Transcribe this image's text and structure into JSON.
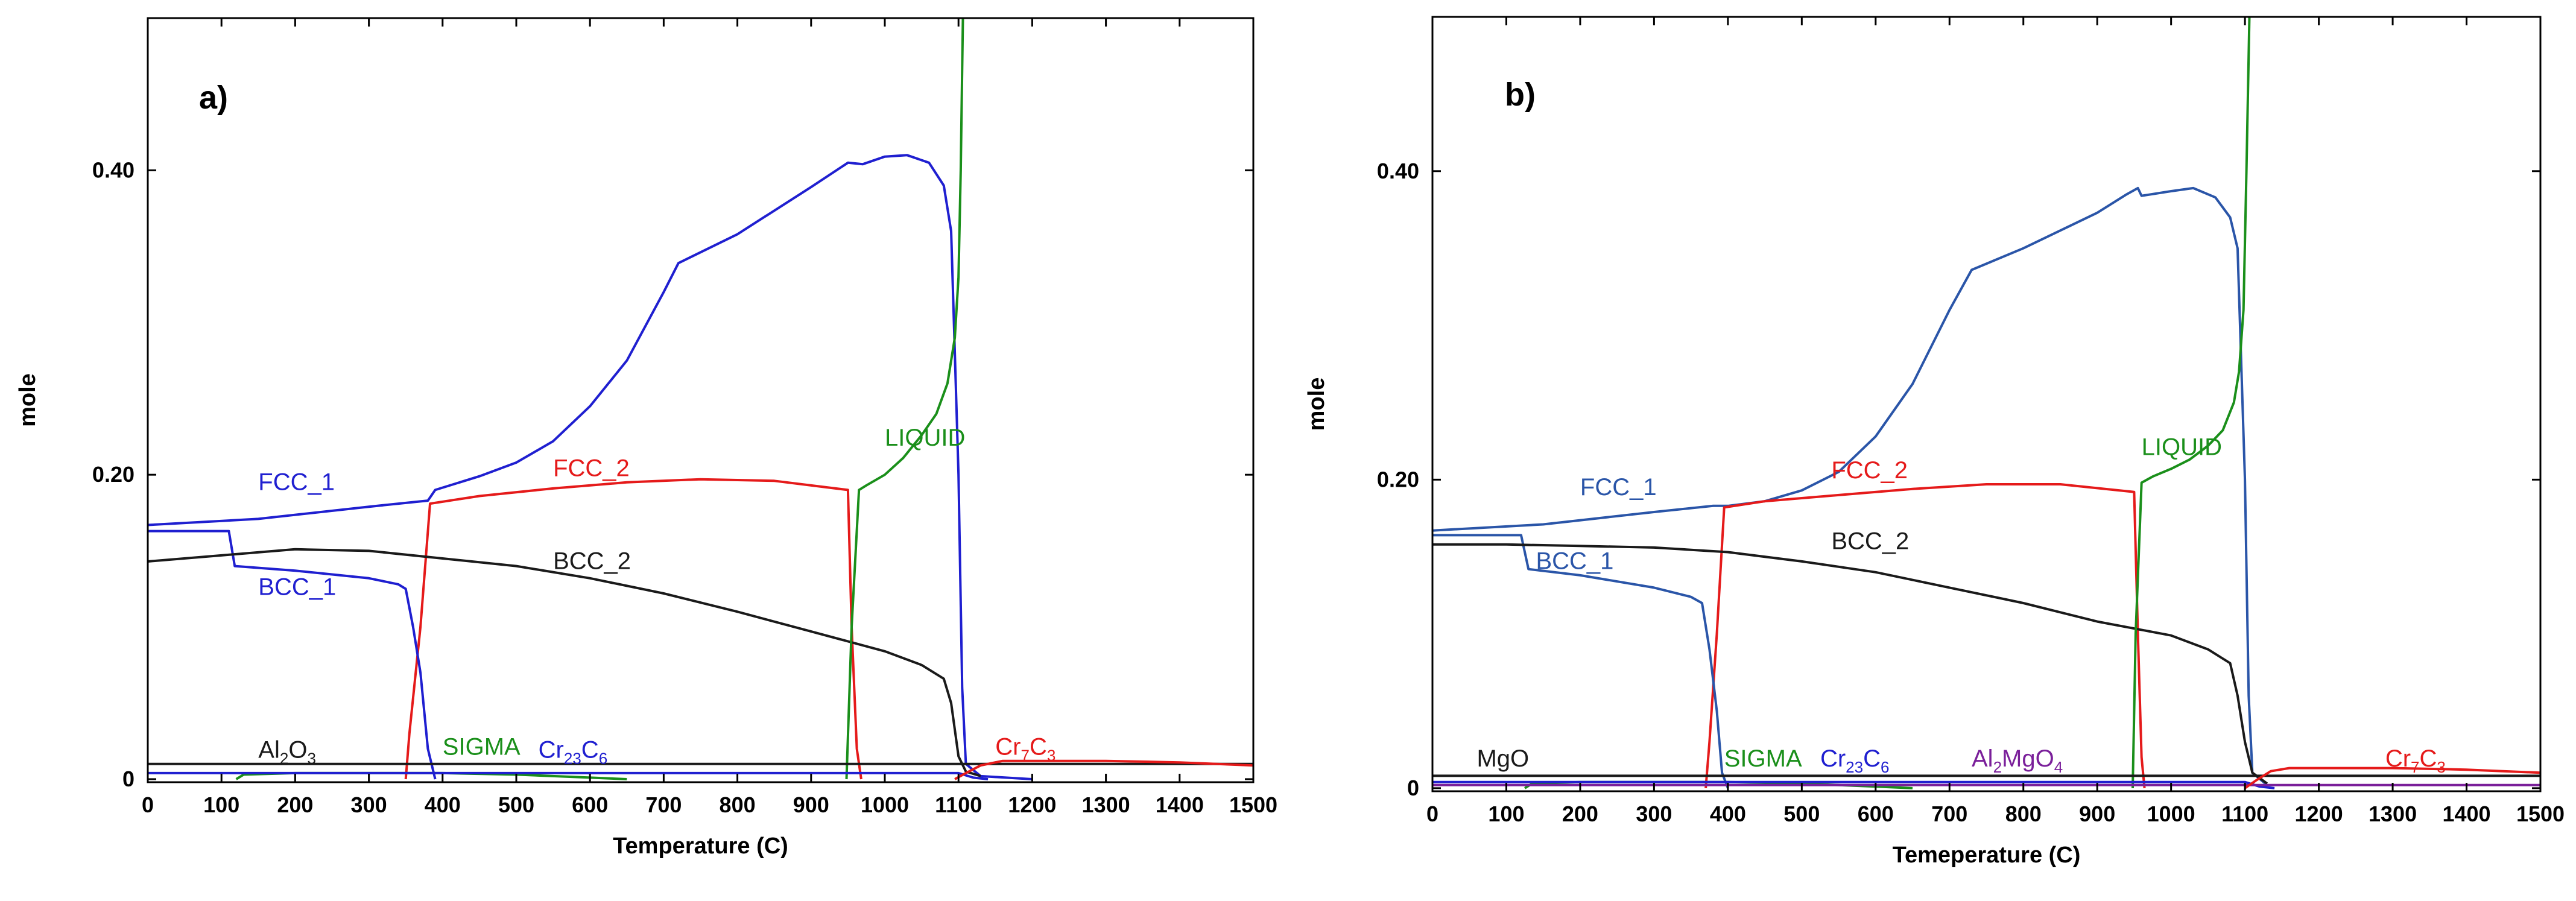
{
  "chart_data": [
    {
      "type": "line",
      "panel": "a)",
      "xlabel": "Temperature (C)",
      "ylabel": "mole",
      "xlim": [
        0,
        1500
      ],
      "ylim": [
        -0.002,
        0.5
      ],
      "xticks": [
        0,
        100,
        200,
        300,
        400,
        500,
        600,
        700,
        800,
        900,
        1000,
        1100,
        1200,
        1300,
        1400,
        1500
      ],
      "yticks": [
        0,
        0.2,
        0.4
      ],
      "ytick_labels": [
        "0",
        "0.20",
        "0.40"
      ],
      "series": [
        {
          "name": "FCC_1",
          "color": "#1f1fd0",
          "points": [
            [
              0,
              0.167
            ],
            [
              150,
              0.171
            ],
            [
              300,
              0.179
            ],
            [
              380,
              0.183
            ],
            [
              390,
              0.19
            ],
            [
              450,
              0.199
            ],
            [
              500,
              0.208
            ],
            [
              550,
              0.222
            ],
            [
              600,
              0.245
            ],
            [
              650,
              0.275
            ],
            [
              700,
              0.32
            ],
            [
              720,
              0.339
            ],
            [
              800,
              0.358
            ],
            [
              900,
              0.389
            ],
            [
              950,
              0.405
            ],
            [
              970,
              0.404
            ],
            [
              1000,
              0.409
            ],
            [
              1030,
              0.41
            ],
            [
              1060,
              0.405
            ],
            [
              1080,
              0.39
            ],
            [
              1090,
              0.36
            ],
            [
              1100,
              0.2
            ],
            [
              1105,
              0.06
            ],
            [
              1110,
              0.01
            ],
            [
              1130,
              0.002
            ],
            [
              1200,
              0.0
            ]
          ]
        },
        {
          "name": "FCC_2",
          "color": "#e51a1a",
          "points": [
            [
              350,
              0.0
            ],
            [
              355,
              0.03
            ],
            [
              370,
              0.1
            ],
            [
              383,
              0.181
            ],
            [
              450,
              0.186
            ],
            [
              550,
              0.191
            ],
            [
              650,
              0.195
            ],
            [
              750,
              0.197
            ],
            [
              850,
              0.196
            ],
            [
              950,
              0.19
            ],
            [
              955,
              0.1
            ],
            [
              962,
              0.02
            ],
            [
              968,
              0.0
            ]
          ]
        },
        {
          "name": "BCC_1",
          "color": "#1f1fd0",
          "points": [
            [
              0,
              0.163
            ],
            [
              110,
              0.163
            ],
            [
              118,
              0.14
            ],
            [
              200,
              0.137
            ],
            [
              300,
              0.132
            ],
            [
              340,
              0.128
            ],
            [
              350,
              0.125
            ],
            [
              360,
              0.1
            ],
            [
              370,
              0.07
            ],
            [
              380,
              0.02
            ],
            [
              390,
              0.0
            ]
          ]
        },
        {
          "name": "BCC_2",
          "color": "#1a1a1a",
          "points": [
            [
              0,
              0.143
            ],
            [
              100,
              0.147
            ],
            [
              200,
              0.151
            ],
            [
              300,
              0.15
            ],
            [
              400,
              0.145
            ],
            [
              500,
              0.14
            ],
            [
              600,
              0.132
            ],
            [
              700,
              0.122
            ],
            [
              800,
              0.11
            ],
            [
              900,
              0.097
            ],
            [
              1000,
              0.084
            ],
            [
              1050,
              0.075
            ],
            [
              1080,
              0.066
            ],
            [
              1090,
              0.05
            ],
            [
              1100,
              0.015
            ],
            [
              1110,
              0.005
            ],
            [
              1130,
              0.002
            ]
          ]
        },
        {
          "name": "LIQUID",
          "color": "#1a8f1a",
          "points": [
            [
              948,
              0.0
            ],
            [
              955,
              0.1
            ],
            [
              965,
              0.19
            ],
            [
              975,
              0.193
            ],
            [
              1000,
              0.2
            ],
            [
              1025,
              0.211
            ],
            [
              1050,
              0.226
            ],
            [
              1070,
              0.24
            ],
            [
              1085,
              0.26
            ],
            [
              1095,
              0.29
            ],
            [
              1100,
              0.33
            ],
            [
              1103,
              0.4
            ],
            [
              1106,
              0.5
            ]
          ]
        },
        {
          "name": "SIGMA",
          "color": "#1a8f1a",
          "points": [
            [
              120,
              0.0
            ],
            [
              130,
              0.003
            ],
            [
              200,
              0.004
            ],
            [
              300,
              0.004
            ],
            [
              400,
              0.004
            ],
            [
              500,
              0.003
            ],
            [
              600,
              0.001
            ],
            [
              650,
              0.0
            ]
          ]
        },
        {
          "name": "Al2O3",
          "color": "#1a1a1a",
          "points": [
            [
              0,
              0.01
            ],
            [
              1500,
              0.01
            ]
          ]
        },
        {
          "name": "Cr23C6",
          "color": "#1f1fd0",
          "points": [
            [
              0,
              0.004
            ],
            [
              1100,
              0.004
            ],
            [
              1120,
              0.001
            ],
            [
              1140,
              0.0
            ]
          ]
        },
        {
          "name": "Cr7C3",
          "color": "#e51a1a",
          "points": [
            [
              1095,
              0.0
            ],
            [
              1110,
              0.004
            ],
            [
              1130,
              0.009
            ],
            [
              1160,
              0.012
            ],
            [
              1300,
              0.012
            ],
            [
              1400,
              0.011
            ],
            [
              1500,
              0.009
            ]
          ]
        }
      ],
      "labels": [
        {
          "text": "FCC_1",
          "x": 150,
          "y": 0.19,
          "color": "#1f1fd0"
        },
        {
          "text": "FCC_2",
          "x": 550,
          "y": 0.199,
          "color": "#e51a1a"
        },
        {
          "text": "BCC_1",
          "x": 150,
          "y": 0.121,
          "color": "#1f1fd0"
        },
        {
          "text": "BCC_2",
          "x": 550,
          "y": 0.138,
          "color": "#1a1a1a"
        },
        {
          "text": "LIQUID",
          "x": 1000,
          "y": 0.219,
          "color": "#1a8f1a"
        },
        {
          "text": "SIGMA",
          "x": 400,
          "y": 0.016,
          "color": "#1a8f1a"
        },
        {
          "text": "Al",
          "sub": "2",
          "tail": "O",
          "sub2": "3",
          "x": 150,
          "y": 0.014,
          "color": "#1a1a1a"
        },
        {
          "text": "Cr",
          "sub": "23",
          "tail": "C",
          "sub2": "6",
          "x": 530,
          "y": 0.014,
          "color": "#1f1fd0"
        },
        {
          "text": "Cr",
          "sub": "7",
          "tail": "C",
          "sub2": "3",
          "x": 1150,
          "y": 0.016,
          "color": "#e51a1a"
        }
      ]
    },
    {
      "type": "line",
      "panel": "b)",
      "xlabel": "Temeperature (C)",
      "ylabel": "mole",
      "xlim": [
        0,
        1500
      ],
      "ylim": [
        -0.002,
        0.5
      ],
      "xticks": [
        0,
        100,
        200,
        300,
        400,
        500,
        600,
        700,
        800,
        900,
        1000,
        1100,
        1200,
        1300,
        1400,
        1500
      ],
      "yticks": [
        0,
        0.2,
        0.4
      ],
      "ytick_labels": [
        "0",
        "0.20",
        "0.40"
      ],
      "series": [
        {
          "name": "FCC_1",
          "color": "#2a55a8",
          "points": [
            [
              0,
              0.167
            ],
            [
              150,
              0.171
            ],
            [
              300,
              0.179
            ],
            [
              380,
              0.183
            ],
            [
              400,
              0.183
            ],
            [
              450,
              0.186
            ],
            [
              500,
              0.193
            ],
            [
              550,
              0.205
            ],
            [
              600,
              0.228
            ],
            [
              650,
              0.262
            ],
            [
              700,
              0.31
            ],
            [
              730,
              0.336
            ],
            [
              800,
              0.35
            ],
            [
              900,
              0.373
            ],
            [
              940,
              0.385
            ],
            [
              955,
              0.389
            ],
            [
              960,
              0.384
            ],
            [
              1000,
              0.387
            ],
            [
              1030,
              0.389
            ],
            [
              1060,
              0.383
            ],
            [
              1080,
              0.37
            ],
            [
              1090,
              0.35
            ],
            [
              1100,
              0.2
            ],
            [
              1105,
              0.06
            ],
            [
              1110,
              0.01
            ],
            [
              1130,
              0.002
            ]
          ]
        },
        {
          "name": "FCC_2",
          "color": "#e51a1a",
          "points": [
            [
              370,
              0.0
            ],
            [
              375,
              0.03
            ],
            [
              385,
              0.1
            ],
            [
              395,
              0.182
            ],
            [
              450,
              0.186
            ],
            [
              550,
              0.19
            ],
            [
              650,
              0.194
            ],
            [
              750,
              0.197
            ],
            [
              850,
              0.197
            ],
            [
              950,
              0.192
            ],
            [
              955,
              0.1
            ],
            [
              960,
              0.02
            ],
            [
              964,
              0.0
            ]
          ]
        },
        {
          "name": "BCC_1",
          "color": "#2a55a8",
          "points": [
            [
              0,
              0.164
            ],
            [
              120,
              0.164
            ],
            [
              130,
              0.142
            ],
            [
              200,
              0.138
            ],
            [
              300,
              0.13
            ],
            [
              350,
              0.124
            ],
            [
              365,
              0.12
            ],
            [
              375,
              0.09
            ],
            [
              385,
              0.05
            ],
            [
              392,
              0.01
            ],
            [
              400,
              0.0
            ]
          ]
        },
        {
          "name": "BCC_2",
          "color": "#1a1a1a",
          "points": [
            [
              0,
              0.158
            ],
            [
              100,
              0.158
            ],
            [
              200,
              0.157
            ],
            [
              300,
              0.156
            ],
            [
              400,
              0.153
            ],
            [
              500,
              0.147
            ],
            [
              600,
              0.14
            ],
            [
              700,
              0.13
            ],
            [
              800,
              0.12
            ],
            [
              900,
              0.108
            ],
            [
              1000,
              0.099
            ],
            [
              1050,
              0.09
            ],
            [
              1080,
              0.081
            ],
            [
              1090,
              0.06
            ],
            [
              1100,
              0.03
            ],
            [
              1110,
              0.01
            ],
            [
              1130,
              0.003
            ]
          ]
        },
        {
          "name": "LIQUID",
          "color": "#1a8f1a",
          "points": [
            [
              948,
              0.0
            ],
            [
              952,
              0.1
            ],
            [
              960,
              0.198
            ],
            [
              975,
              0.202
            ],
            [
              1000,
              0.207
            ],
            [
              1025,
              0.213
            ],
            [
              1050,
              0.222
            ],
            [
              1070,
              0.232
            ],
            [
              1085,
              0.25
            ],
            [
              1092,
              0.27
            ],
            [
              1098,
              0.31
            ],
            [
              1102,
              0.4
            ],
            [
              1106,
              0.5
            ]
          ]
        },
        {
          "name": "SIGMA",
          "color": "#1a8f1a",
          "points": [
            [
              125,
              0.0
            ],
            [
              135,
              0.003
            ],
            [
              200,
              0.004
            ],
            [
              300,
              0.004
            ],
            [
              400,
              0.004
            ],
            [
              500,
              0.003
            ],
            [
              600,
              0.001
            ],
            [
              650,
              0.0
            ]
          ]
        },
        {
          "name": "MgO",
          "color": "#1a1a1a",
          "points": [
            [
              0,
              0.008
            ],
            [
              1500,
              0.008
            ]
          ]
        },
        {
          "name": "Cr23C6",
          "color": "#1f1fd0",
          "points": [
            [
              0,
              0.004
            ],
            [
              1100,
              0.004
            ],
            [
              1120,
              0.001
            ],
            [
              1140,
              0.0
            ]
          ]
        },
        {
          "name": "Al2MgO4",
          "color": "#7a1f9a",
          "points": [
            [
              0,
              0.002
            ],
            [
              1500,
              0.002
            ]
          ]
        },
        {
          "name": "Cr7C3",
          "color": "#e51a1a",
          "points": [
            [
              1100,
              0.0
            ],
            [
              1115,
              0.005
            ],
            [
              1135,
              0.011
            ],
            [
              1160,
              0.013
            ],
            [
              1300,
              0.013
            ],
            [
              1400,
              0.012
            ],
            [
              1500,
              0.01
            ]
          ]
        }
      ],
      "labels": [
        {
          "text": "FCC_1",
          "x": 200,
          "y": 0.19,
          "color": "#2a55a8"
        },
        {
          "text": "FCC_2",
          "x": 540,
          "y": 0.201,
          "color": "#e51a1a"
        },
        {
          "text": "BCC_1",
          "x": 140,
          "y": 0.142,
          "color": "#2a55a8"
        },
        {
          "text": "BCC_2",
          "x": 540,
          "y": 0.155,
          "color": "#1a1a1a"
        },
        {
          "text": "LIQUID",
          "x": 960,
          "y": 0.216,
          "color": "#1a8f1a"
        },
        {
          "text": "SIGMA",
          "x": 395,
          "y": 0.014,
          "color": "#1a8f1a"
        },
        {
          "text": "MgO",
          "x": 60,
          "y": 0.014,
          "color": "#1a1a1a"
        },
        {
          "text": "Cr",
          "sub": "23",
          "tail": "C",
          "sub2": "6",
          "x": 525,
          "y": 0.014,
          "color": "#1f1fd0"
        },
        {
          "text": "Al",
          "sub": "2",
          "tail": "MgO",
          "sub2": "4",
          "x": 730,
          "y": 0.014,
          "color": "#7a1f9a"
        },
        {
          "text": "Cr",
          "sub": "7",
          "tail": "C",
          "sub2": "3",
          "x": 1290,
          "y": 0.014,
          "color": "#e51a1a"
        }
      ]
    }
  ]
}
